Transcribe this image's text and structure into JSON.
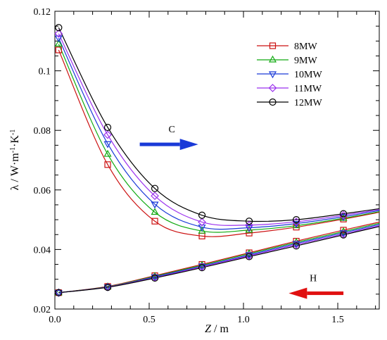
{
  "chart_data": {
    "type": "line",
    "title": "",
    "xlabel": {
      "var": "Z",
      "unit": " / m"
    },
    "ylabel": {
      "base": "λ / W·m",
      "exp1": "-1",
      "mid": "·K",
      "exp2": "-1"
    },
    "xlim": [
      0,
      1.72
    ],
    "ylim": [
      0.02,
      0.12
    ],
    "xticks": [
      0,
      0.5,
      1,
      1.5
    ],
    "xtick_labels": [
      "0.0",
      "0.5",
      "1.0",
      "1.5"
    ],
    "yticks": [
      0.02,
      0.04,
      0.06,
      0.08,
      0.1,
      0.12
    ],
    "ytick_labels": [
      "0.02",
      "0.04",
      "0.06",
      "0.08",
      "0.1",
      "0.12"
    ],
    "grid": false,
    "legend_position": "top-right",
    "series": [
      {
        "name": "8MW",
        "color": "#cc1111",
        "marker": "square",
        "group": "C",
        "x": [
          0.02,
          0.28,
          0.53,
          0.78,
          1.03,
          1.28,
          1.53,
          1.72
        ],
        "y": [
          0.107,
          0.0685,
          0.0495,
          0.0445,
          0.0455,
          0.0475,
          0.0502,
          0.0525
        ]
      },
      {
        "name": "9MW",
        "color": "#11aa11",
        "marker": "triangle",
        "group": "C",
        "x": [
          0.02,
          0.28,
          0.53,
          0.78,
          1.03,
          1.28,
          1.53,
          1.72
        ],
        "y": [
          0.109,
          0.072,
          0.0525,
          0.0462,
          0.0465,
          0.048,
          0.0505,
          0.0527
        ]
      },
      {
        "name": "10MW",
        "color": "#1a3ad8",
        "marker": "triangle-down",
        "group": "C",
        "x": [
          0.02,
          0.28,
          0.53,
          0.78,
          1.03,
          1.28,
          1.53,
          1.72
        ],
        "y": [
          0.111,
          0.0755,
          0.0552,
          0.0475,
          0.0473,
          0.0487,
          0.051,
          0.0531
        ]
      },
      {
        "name": "11MW",
        "color": "#9b30ee",
        "marker": "diamond",
        "group": "C",
        "x": [
          0.02,
          0.28,
          0.53,
          0.78,
          1.03,
          1.28,
          1.53,
          1.72
        ],
        "y": [
          0.1125,
          0.0785,
          0.058,
          0.0492,
          0.0482,
          0.0493,
          0.0515,
          0.0534
        ]
      },
      {
        "name": "12MW",
        "color": "#000000",
        "marker": "circle",
        "group": "C",
        "x": [
          0.02,
          0.28,
          0.53,
          0.78,
          1.03,
          1.28,
          1.53,
          1.72
        ],
        "y": [
          0.1145,
          0.081,
          0.0605,
          0.0515,
          0.0495,
          0.05,
          0.052,
          0.0537
        ]
      },
      {
        "name": "8MW",
        "color": "#cc1111",
        "marker": "square",
        "group": "H",
        "x": [
          0.02,
          0.28,
          0.53,
          0.78,
          1.03,
          1.28,
          1.53,
          1.72
        ],
        "y": [
          0.0255,
          0.0276,
          0.0312,
          0.035,
          0.0389,
          0.0428,
          0.0465,
          0.0492
        ]
      },
      {
        "name": "9MW",
        "color": "#11aa11",
        "marker": "triangle",
        "group": "H",
        "x": [
          0.02,
          0.28,
          0.53,
          0.78,
          1.03,
          1.28,
          1.53,
          1.72
        ],
        "y": [
          0.0255,
          0.0275,
          0.031,
          0.0347,
          0.0386,
          0.0424,
          0.046,
          0.0488
        ]
      },
      {
        "name": "10MW",
        "color": "#1a3ad8",
        "marker": "triangle-down",
        "group": "H",
        "x": [
          0.02,
          0.28,
          0.53,
          0.78,
          1.03,
          1.28,
          1.53,
          1.72
        ],
        "y": [
          0.0255,
          0.0274,
          0.0308,
          0.0344,
          0.0382,
          0.042,
          0.0456,
          0.0484
        ]
      },
      {
        "name": "11MW",
        "color": "#9b30ee",
        "marker": "diamond",
        "group": "H",
        "x": [
          0.02,
          0.28,
          0.53,
          0.78,
          1.03,
          1.28,
          1.53,
          1.72
        ],
        "y": [
          0.0255,
          0.0274,
          0.0306,
          0.0342,
          0.0379,
          0.0416,
          0.0452,
          0.048
        ]
      },
      {
        "name": "12MW",
        "color": "#000000",
        "marker": "circle",
        "group": "H",
        "x": [
          0.02,
          0.28,
          0.53,
          0.78,
          1.03,
          1.28,
          1.53,
          1.72
        ],
        "y": [
          0.0255,
          0.0273,
          0.0304,
          0.0339,
          0.0376,
          0.0412,
          0.0449,
          0.0477
        ]
      }
    ],
    "annotations": [
      {
        "label": "C",
        "direction": "right",
        "color": "#1a3ad8",
        "x_from": 0.45,
        "x_to": 0.76,
        "y": 0.0753
      },
      {
        "label": "H",
        "direction": "left",
        "color": "#e01010",
        "x_from": 1.53,
        "x_to": 1.24,
        "y": 0.0253
      }
    ]
  }
}
